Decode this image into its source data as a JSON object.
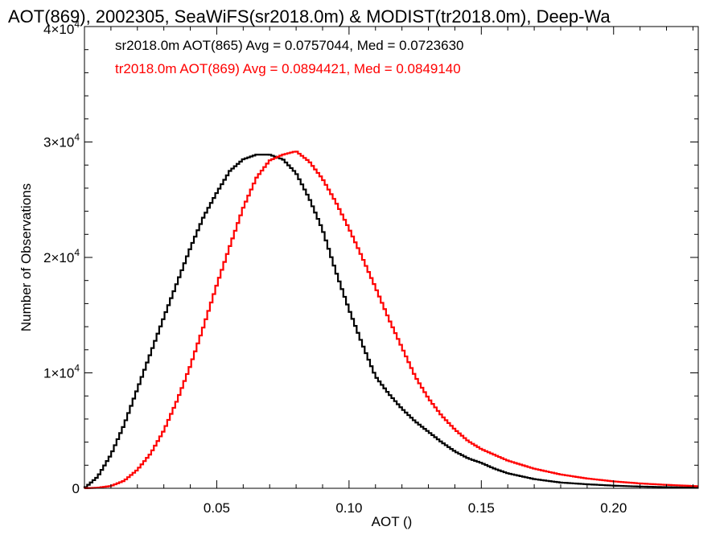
{
  "chart_data": {
    "type": "line",
    "step": true,
    "title": "AOT(869), 2002305, SeaWiFS(sr2018.0m) & MODIST(tr2018.0m), Deep-Wa",
    "xlabel": "AOT ()",
    "ylabel": "Number of Observations",
    "xlim": [
      0.0,
      0.232
    ],
    "ylim": [
      0,
      40000
    ],
    "x_ticks": [
      {
        "value": 0.05,
        "label": "0.05"
      },
      {
        "value": 0.1,
        "label": "0.10"
      },
      {
        "value": 0.15,
        "label": "0.15"
      },
      {
        "value": 0.2,
        "label": "0.20"
      }
    ],
    "y_ticks": [
      {
        "value": 0,
        "mantissa": "0",
        "exponent": ""
      },
      {
        "value": 10000,
        "mantissa": "1×10",
        "exponent": "4"
      },
      {
        "value": 20000,
        "mantissa": "2×10",
        "exponent": "4"
      },
      {
        "value": 30000,
        "mantissa": "3×10",
        "exponent": "4"
      },
      {
        "value": 40000,
        "mantissa": "4×10",
        "exponent": "4"
      }
    ],
    "grid": false,
    "legend_position": "top-left",
    "series": [
      {
        "name": "sr2018.0m AOT(865) Avg = 0.0757044, Med = 0.0723630",
        "color": "#000000",
        "x": [
          0.0,
          0.005,
          0.01,
          0.015,
          0.02,
          0.025,
          0.03,
          0.035,
          0.04,
          0.045,
          0.05,
          0.055,
          0.06,
          0.065,
          0.07,
          0.075,
          0.08,
          0.085,
          0.09,
          0.095,
          0.1,
          0.105,
          0.11,
          0.115,
          0.12,
          0.125,
          0.13,
          0.135,
          0.14,
          0.145,
          0.15,
          0.155,
          0.16,
          0.17,
          0.18,
          0.19,
          0.2,
          0.21,
          0.22,
          0.232
        ],
        "y": [
          0,
          1000,
          2900,
          5500,
          8600,
          11700,
          14800,
          17800,
          20800,
          23500,
          25600,
          27500,
          28500,
          28900,
          28900,
          28500,
          27300,
          25100,
          22400,
          18800,
          15500,
          12500,
          9700,
          8200,
          6900,
          5800,
          4900,
          4000,
          3200,
          2600,
          2200,
          1700,
          1300,
          800,
          500,
          350,
          230,
          150,
          100,
          50
        ]
      },
      {
        "name": "tr2018.0m AOT(869) Avg = 0.0894421, Med = 0.0849140",
        "color": "#ff0000",
        "x": [
          0.0,
          0.005,
          0.01,
          0.015,
          0.02,
          0.025,
          0.03,
          0.035,
          0.04,
          0.045,
          0.05,
          0.055,
          0.06,
          0.065,
          0.07,
          0.075,
          0.08,
          0.085,
          0.09,
          0.095,
          0.1,
          0.105,
          0.11,
          0.115,
          0.12,
          0.125,
          0.13,
          0.135,
          0.14,
          0.145,
          0.15,
          0.155,
          0.16,
          0.17,
          0.18,
          0.19,
          0.2,
          0.21,
          0.22,
          0.232
        ],
        "y": [
          0,
          50,
          200,
          650,
          1600,
          3000,
          5000,
          7600,
          10600,
          14000,
          17600,
          21000,
          24300,
          26900,
          28400,
          28900,
          29200,
          28300,
          26800,
          24800,
          22500,
          20000,
          17400,
          14700,
          12200,
          9700,
          7800,
          6300,
          5100,
          4100,
          3400,
          2900,
          2400,
          1700,
          1200,
          850,
          600,
          420,
          300,
          180
        ]
      }
    ]
  }
}
